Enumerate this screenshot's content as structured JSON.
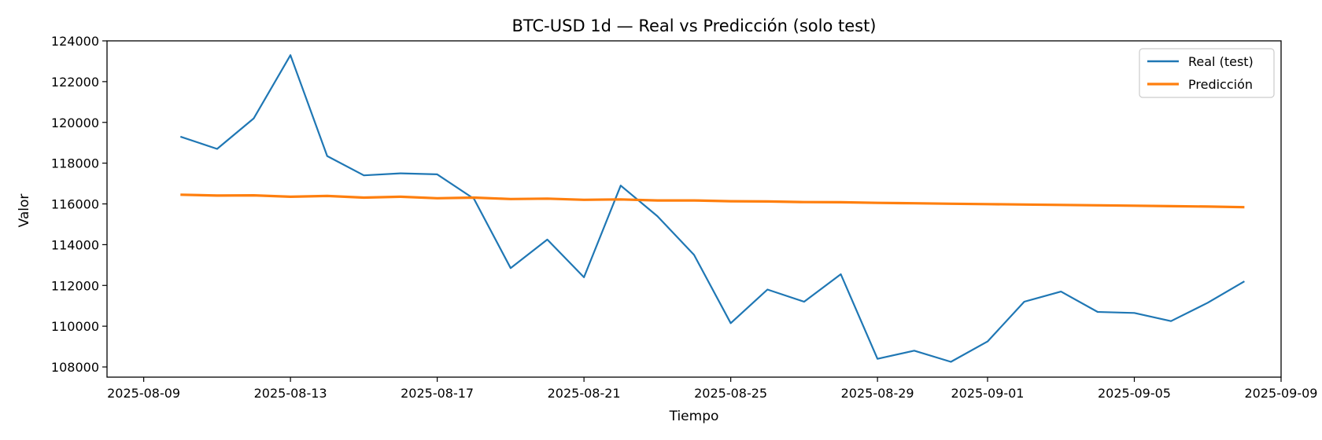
{
  "chart_data": {
    "type": "line",
    "title": "BTC-USD 1d — Real vs Predicción (solo test)",
    "xlabel": "Tiempo",
    "ylabel": "Valor",
    "x_start": "2025-08-10",
    "x_ticks": [
      "2025-08-09",
      "2025-08-13",
      "2025-08-17",
      "2025-08-21",
      "2025-08-25",
      "2025-08-29",
      "2025-09-01",
      "2025-09-05",
      "2025-09-09"
    ],
    "xlim": [
      "2025-08-08",
      "2025-09-09"
    ],
    "y_ticks": [
      108000,
      110000,
      112000,
      114000,
      116000,
      118000,
      120000,
      122000,
      124000
    ],
    "ylim": [
      107500,
      124000
    ],
    "grid": false,
    "legend_position": "top-right",
    "series": [
      {
        "name": "Real (test)",
        "color": "#1f77b4",
        "values": [
          119300,
          118700,
          120200,
          123300,
          118350,
          117400,
          117500,
          117450,
          116250,
          112850,
          114250,
          112400,
          116900,
          115400,
          113500,
          110150,
          111800,
          111200,
          112550,
          108400,
          108800,
          108250,
          109250,
          111200,
          111700,
          110700,
          110650,
          110250,
          111150,
          112200
        ]
      },
      {
        "name": "Predicción",
        "color": "#ff7f0e",
        "values": [
          116450,
          116410,
          116420,
          116350,
          116390,
          116310,
          116350,
          116280,
          116310,
          116240,
          116260,
          116200,
          116220,
          116170,
          116170,
          116130,
          116120,
          116090,
          116080,
          116050,
          116030,
          116010,
          115990,
          115970,
          115950,
          115930,
          115910,
          115890,
          115870,
          115840
        ]
      }
    ]
  }
}
